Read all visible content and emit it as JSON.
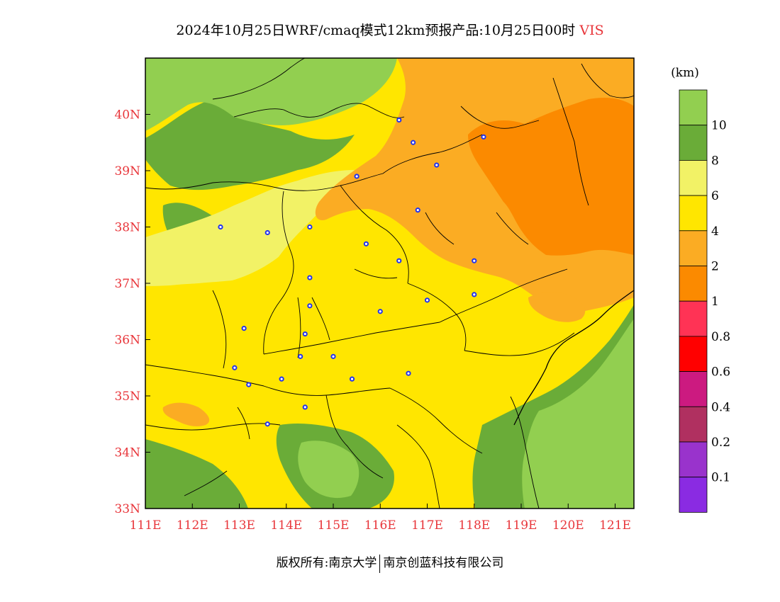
{
  "title": {
    "main": "2024年10月25日WRF/cmaq模式12km预报产品:10月25日00时",
    "variable": "VIS"
  },
  "map": {
    "lon_range": [
      111,
      121.4
    ],
    "lat_range": [
      33,
      41
    ],
    "x_ticks": [
      "111E",
      "112E",
      "113E",
      "114E",
      "115E",
      "116E",
      "117E",
      "118E",
      "119E",
      "120E",
      "121E"
    ],
    "y_ticks": [
      "33N",
      "34N",
      "35N",
      "36N",
      "37N",
      "38N",
      "39N",
      "40N"
    ],
    "city_markers": [
      [
        116.4,
        39.9
      ],
      [
        117.2,
        39.1
      ],
      [
        116.7,
        39.5
      ],
      [
        118.2,
        39.6
      ],
      [
        115.5,
        38.9
      ],
      [
        114.5,
        38.0
      ],
      [
        112.6,
        38.0
      ],
      [
        113.6,
        37.9
      ],
      [
        116.8,
        38.3
      ],
      [
        115.7,
        37.7
      ],
      [
        116.4,
        37.4
      ],
      [
        114.5,
        37.1
      ],
      [
        118.0,
        37.4
      ],
      [
        118.0,
        36.8
      ],
      [
        114.5,
        36.6
      ],
      [
        117.0,
        36.7
      ],
      [
        116.0,
        36.5
      ],
      [
        113.1,
        36.2
      ],
      [
        114.4,
        36.1
      ],
      [
        114.3,
        35.7
      ],
      [
        115.0,
        35.7
      ],
      [
        112.9,
        35.5
      ],
      [
        113.2,
        35.2
      ],
      [
        113.9,
        35.3
      ],
      [
        115.4,
        35.3
      ],
      [
        116.6,
        35.4
      ],
      [
        114.4,
        34.8
      ],
      [
        113.6,
        34.5
      ]
    ]
  },
  "colors": {
    "above_10": "#92cf50",
    "8_10": "#6aac38",
    "6_8": "#f2f266",
    "4_6": "#ffe600",
    "2_4": "#fbac23",
    "1_2": "#fb8a00",
    "0.8_1": "#ff3355",
    "0.6_0.8": "#ff0000",
    "0.4_0.6": "#cc1a80",
    "0.2_0.4": "#b03060",
    "0.1_0.2": "#9933cc",
    "below_0.1": "#8a2be2"
  },
  "legend": {
    "unit": "(km)",
    "labels": [
      "10",
      "8",
      "6",
      "4",
      "2",
      "1",
      "0.8",
      "0.6",
      "0.4",
      "0.2",
      "0.1"
    ]
  },
  "footer": {
    "left": "版权所有:南京大学",
    "right": "南京创蓝科技有限公司"
  }
}
